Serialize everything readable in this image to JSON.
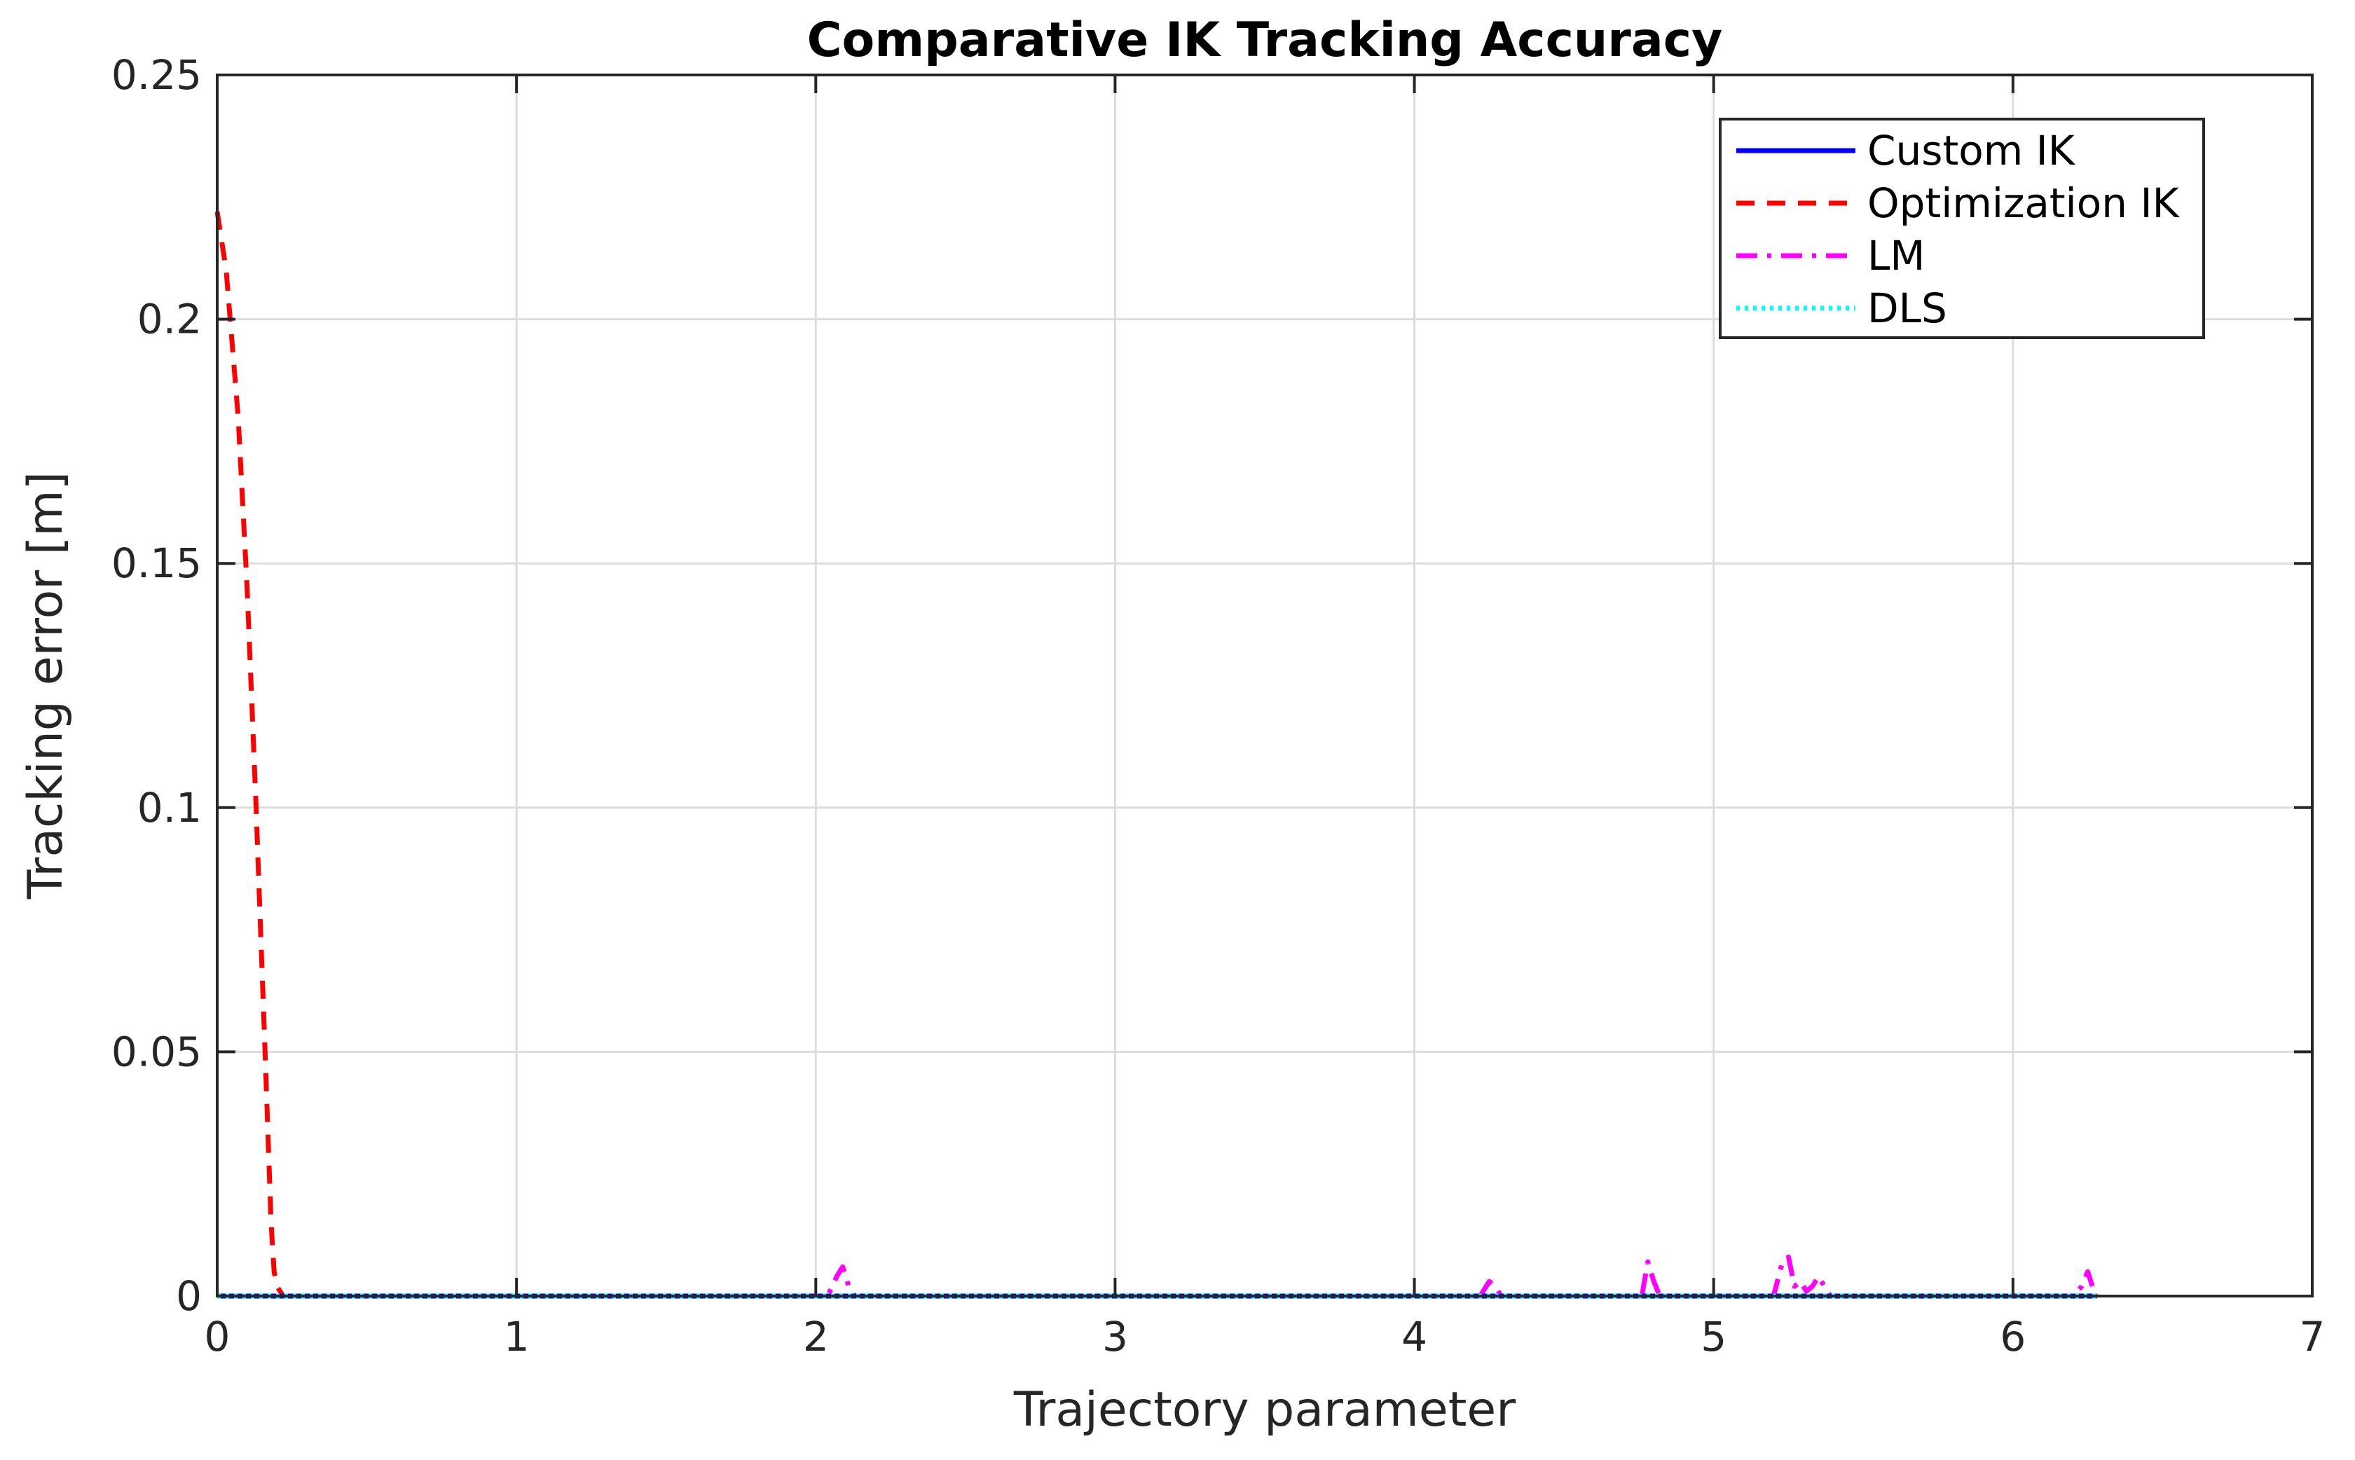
{
  "chart_data": {
    "type": "line",
    "title": "Comparative IK Tracking Accuracy",
    "xlabel": "Trajectory parameter",
    "ylabel": "Tracking error [m]",
    "xlim": [
      0,
      7
    ],
    "ylim": [
      0,
      0.25
    ],
    "xticks": [
      0,
      1,
      2,
      3,
      4,
      5,
      6,
      7
    ],
    "xtick_labels": [
      "0",
      "1",
      "2",
      "3",
      "4",
      "5",
      "6",
      "7"
    ],
    "yticks": [
      0,
      0.05,
      0.1,
      0.15,
      0.2,
      0.25
    ],
    "ytick_labels": [
      "0",
      "0.05",
      "0.1",
      "0.15",
      "0.2",
      "0.25"
    ],
    "grid": true,
    "legend_position": "top-right",
    "series": [
      {
        "name": "Custom IK",
        "color": "#0000ff",
        "style": "solid",
        "x": [
          0,
          6.28
        ],
        "y": [
          0,
          0
        ]
      },
      {
        "name": "Optimization IK",
        "color": "#ff0000",
        "style": "dashed",
        "x": [
          0,
          0.03,
          0.07,
          0.1,
          0.13,
          0.16,
          0.18,
          0.19,
          0.2,
          0.22,
          0.3,
          6.28
        ],
        "y": [
          0.222,
          0.21,
          0.18,
          0.145,
          0.1,
          0.05,
          0.015,
          0.005,
          0.002,
          0,
          0,
          0
        ]
      },
      {
        "name": "LM",
        "color": "#ff00ff",
        "style": "dashdot",
        "x": [
          0,
          2.04,
          2.07,
          2.09,
          2.11,
          2.13,
          4.22,
          4.25,
          4.27,
          4.29,
          4.76,
          4.78,
          4.8,
          4.82,
          5.2,
          5.23,
          5.25,
          5.27,
          5.29,
          5.31,
          5.33,
          5.35,
          5.37,
          5.39,
          6.2,
          6.23,
          6.25,
          6.27,
          6.28
        ],
        "y": [
          0,
          0,
          0.004,
          0.006,
          0.002,
          0,
          0,
          0.003,
          0.002,
          0,
          0,
          0.007,
          0.003,
          0,
          0,
          0.007,
          0.008,
          0.002,
          0.003,
          0.001,
          0.002,
          0.004,
          0.002,
          0,
          0,
          0.002,
          0.005,
          0.001,
          0
        ]
      },
      {
        "name": "DLS",
        "color": "#00ffff",
        "style": "dotted",
        "x": [
          0,
          6.28
        ],
        "y": [
          0,
          0
        ]
      }
    ]
  }
}
